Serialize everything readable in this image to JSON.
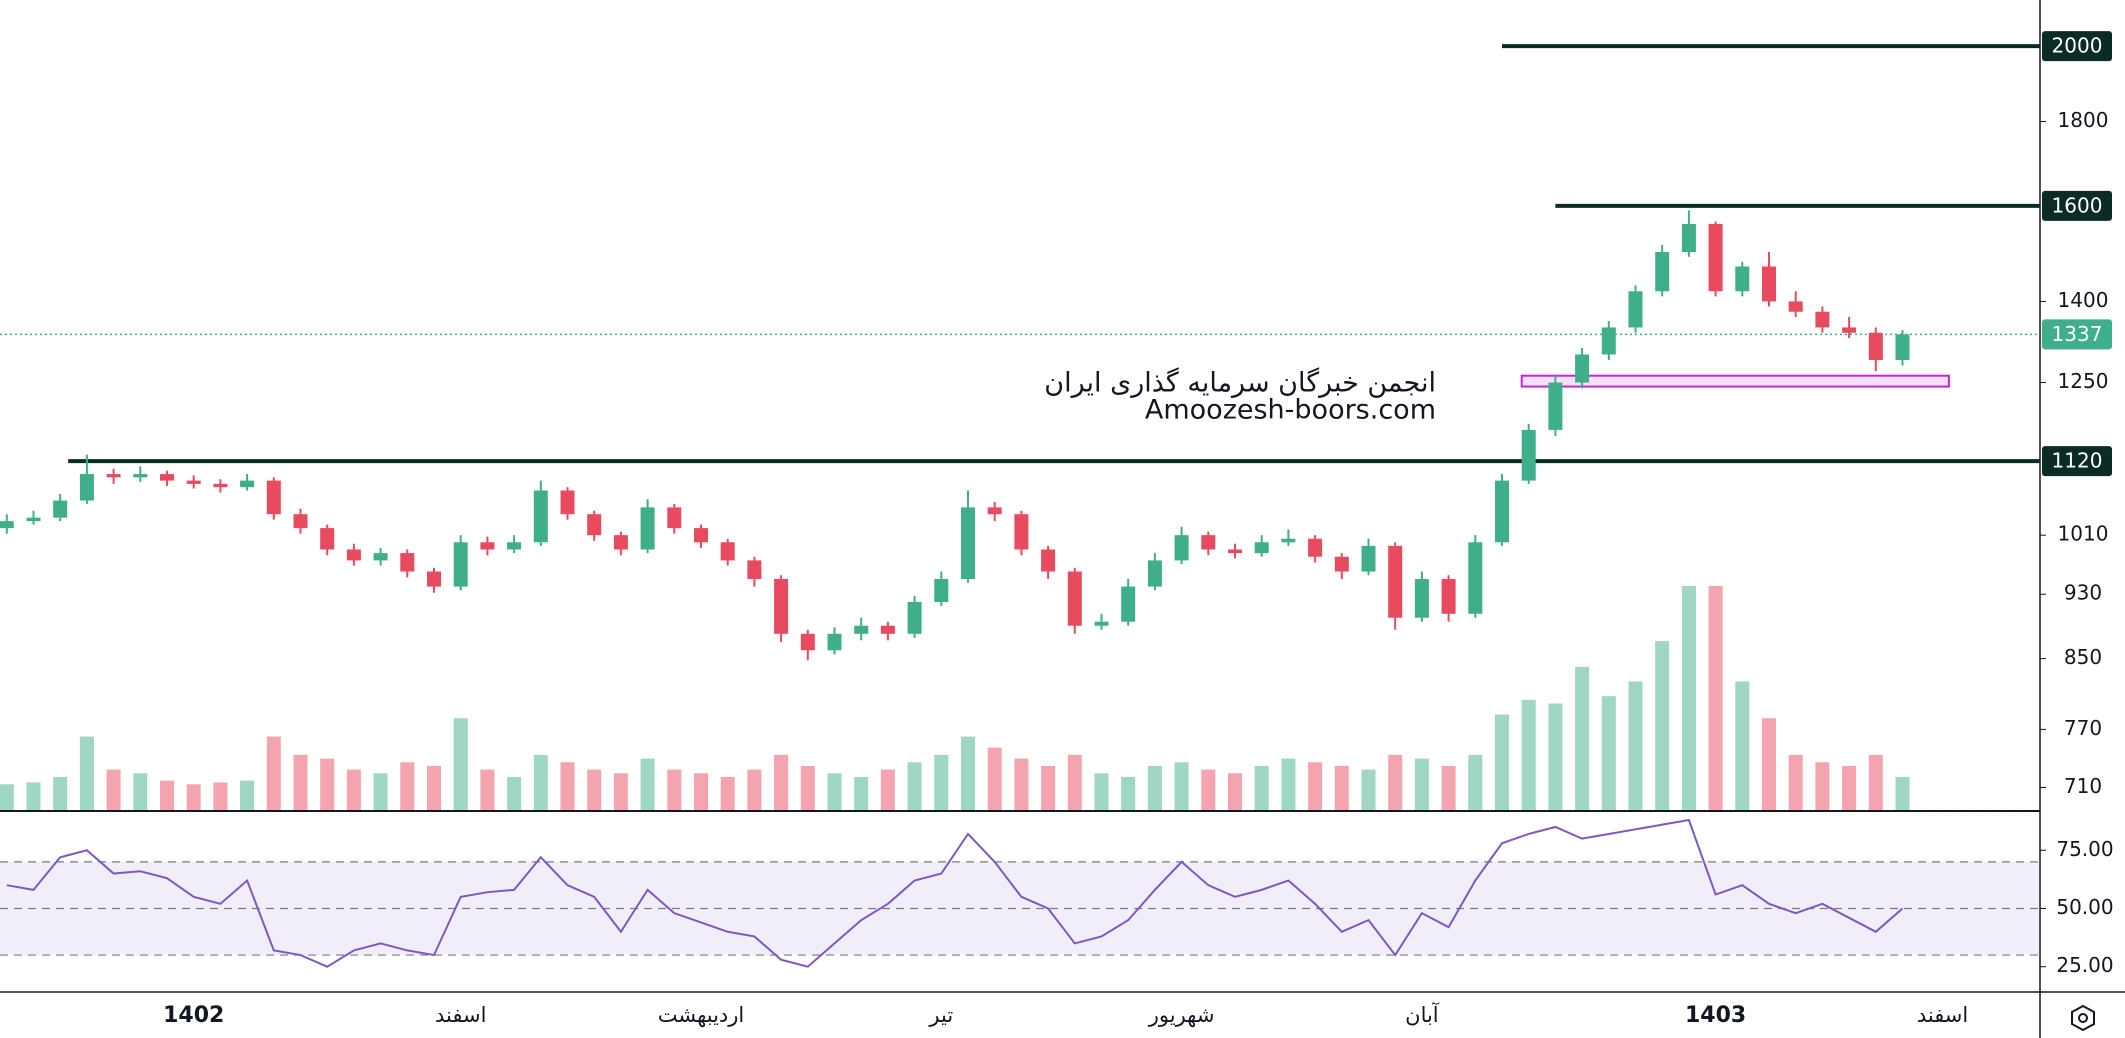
{
  "chart_data": {
    "type": "candlestick",
    "log_scale": true,
    "ylim": [
      688,
      2133
    ],
    "yticks": [
      1800,
      1400,
      1250,
      1010,
      930,
      850,
      770,
      710
    ],
    "up_color": "#3fae8a",
    "down_color": "#e84a5f",
    "open": [
      1020,
      1030,
      1035,
      1060,
      1100,
      1095,
      1100,
      1090,
      1085,
      1080,
      1090,
      1040,
      1020,
      990,
      975,
      985,
      960,
      940,
      1000,
      990,
      1000,
      1075,
      1040,
      1010,
      990,
      1050,
      1020,
      1000,
      975,
      950,
      880,
      860,
      880,
      890,
      880,
      920,
      950,
      1050,
      1040,
      990,
      960,
      890,
      895,
      940,
      975,
      1010,
      990,
      985,
      1000,
      1005,
      980,
      960,
      995,
      900,
      950,
      905,
      1000,
      1090,
      1170,
      1250,
      1300,
      1350,
      1420,
      1500,
      1560,
      1420,
      1470,
      1400,
      1380,
      1350,
      1340,
      1290
    ],
    "high": [
      1040,
      1045,
      1070,
      1130,
      1108,
      1112,
      1105,
      1098,
      1092,
      1100,
      1095,
      1048,
      1025,
      998,
      992,
      990,
      965,
      1010,
      1008,
      1010,
      1090,
      1080,
      1045,
      1015,
      1062,
      1055,
      1025,
      1005,
      980,
      955,
      885,
      888,
      900,
      895,
      928,
      960,
      1075,
      1058,
      1045,
      995,
      965,
      905,
      950,
      985,
      1022,
      1015,
      998,
      1010,
      1018,
      1010,
      985,
      1005,
      1000,
      960,
      955,
      1010,
      1100,
      1180,
      1262,
      1312,
      1362,
      1432,
      1515,
      1590,
      1565,
      1480,
      1500,
      1420,
      1390,
      1370,
      1350,
      1345
    ],
    "low": [
      1012,
      1025,
      1030,
      1055,
      1085,
      1088,
      1082,
      1078,
      1072,
      1075,
      1032,
      1012,
      982,
      968,
      968,
      952,
      932,
      935,
      982,
      985,
      995,
      1032,
      1002,
      982,
      985,
      1012,
      992,
      968,
      940,
      870,
      848,
      855,
      872,
      872,
      875,
      915,
      945,
      1030,
      982,
      950,
      880,
      885,
      890,
      935,
      970,
      982,
      978,
      980,
      995,
      972,
      950,
      955,
      885,
      895,
      895,
      900,
      995,
      1085,
      1160,
      1240,
      1290,
      1340,
      1410,
      1490,
      1410,
      1410,
      1390,
      1370,
      1340,
      1330,
      1270,
      1280
    ],
    "close": [
      1030,
      1035,
      1060,
      1100,
      1095,
      1100,
      1090,
      1085,
      1080,
      1090,
      1040,
      1020,
      990,
      975,
      985,
      960,
      940,
      1000,
      990,
      1000,
      1075,
      1040,
      1010,
      990,
      1050,
      1020,
      1000,
      975,
      950,
      880,
      860,
      880,
      890,
      880,
      920,
      950,
      1050,
      1040,
      990,
      960,
      890,
      895,
      940,
      975,
      1010,
      990,
      985,
      1000,
      1005,
      980,
      960,
      995,
      900,
      950,
      905,
      1000,
      1090,
      1170,
      1250,
      1300,
      1350,
      1420,
      1500,
      1560,
      1420,
      1470,
      1400,
      1380,
      1350,
      1340,
      1290,
      1337
    ],
    "volume": [
      14,
      15,
      18,
      40,
      22,
      20,
      16,
      14,
      15,
      16,
      40,
      30,
      28,
      22,
      20,
      26,
      24,
      50,
      22,
      18,
      30,
      26,
      22,
      20,
      28,
      22,
      20,
      18,
      22,
      30,
      24,
      20,
      18,
      22,
      26,
      30,
      40,
      34,
      28,
      24,
      30,
      20,
      18,
      24,
      26,
      22,
      20,
      24,
      28,
      26,
      24,
      22,
      30,
      28,
      24,
      30,
      52,
      60,
      58,
      78,
      62,
      70,
      92,
      122,
      122,
      70,
      50,
      30,
      26,
      24,
      30,
      18
    ],
    "x_labels": [
      {
        "index": 7,
        "label": "1402",
        "year": true
      },
      {
        "index": 17,
        "label": "اسفند"
      },
      {
        "index": 26,
        "label": "اردیبهشت"
      },
      {
        "index": 35,
        "label": "تیر"
      },
      {
        "index": 44,
        "label": "شهریور"
      },
      {
        "index": 53,
        "label": "آبان"
      },
      {
        "index": 64,
        "label": "1403",
        "year": true
      },
      {
        "index": 72.5,
        "label": "اسفند"
      }
    ],
    "hlines": [
      {
        "value": 2000,
        "start": 56
      },
      {
        "value": 1600,
        "start": 58
      },
      {
        "value": 1120,
        "start": 2.3
      }
    ],
    "hline_color": "#0b2b26",
    "last_price": 1337,
    "zone": {
      "top": 1262,
      "bottom": 1243,
      "start": 57,
      "end": 73,
      "color": "#c026d3"
    },
    "watermark": [
      "انجمن خبرگان سرمایه گذاری ایران",
      "Amoozesh-boors.com"
    ],
    "rsi": {
      "ylim": [
        15,
        91
      ],
      "yticks": [
        {
          "value": 75,
          "label": "75.00"
        },
        {
          "value": 50,
          "label": "50.00"
        },
        {
          "value": 25,
          "label": "25.00"
        }
      ],
      "levels": [
        70,
        50,
        30
      ],
      "color": "#7e57c2",
      "values": [
        60,
        58,
        72,
        75,
        65,
        66,
        63,
        55,
        52,
        62,
        32,
        30,
        25,
        32,
        35,
        32,
        30,
        55,
        57,
        58,
        72,
        60,
        55,
        40,
        58,
        48,
        44,
        40,
        38,
        28,
        25,
        35,
        45,
        52,
        62,
        65,
        82,
        70,
        55,
        50,
        35,
        38,
        45,
        58,
        70,
        60,
        55,
        58,
        62,
        52,
        40,
        45,
        30,
        48,
        42,
        62,
        78,
        82,
        85,
        80,
        82,
        84,
        86,
        88,
        56,
        60,
        52,
        48,
        52,
        46,
        40,
        50
      ]
    }
  }
}
